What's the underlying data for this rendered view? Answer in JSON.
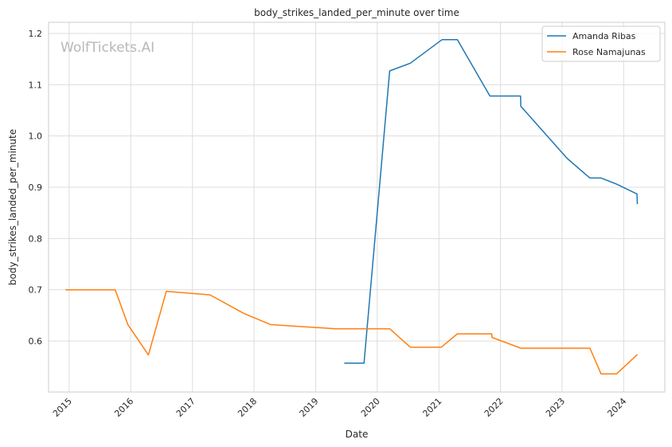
{
  "watermark": "WolfTickets.AI",
  "chart_data": {
    "type": "line",
    "title": "body_strikes_landed_per_minute over time",
    "xlabel": "Date",
    "ylabel": "body_strikes_landed_per_minute",
    "xlim": [
      "2014-09-01",
      "2024-09-01"
    ],
    "ylim": [
      0.5,
      1.2
    ],
    "x_ticks": [
      "2015",
      "2016",
      "2017",
      "2018",
      "2019",
      "2020",
      "2021",
      "2022",
      "2023",
      "2024"
    ],
    "y_ticks": [
      0.6,
      0.7,
      0.8,
      0.9,
      1.0,
      1.1,
      1.2
    ],
    "grid": true,
    "legend_position": "top-right",
    "series": [
      {
        "name": "Amanda Ribas",
        "color": "#1f77b4",
        "points": [
          [
            "2019-06-20",
            0.557
          ],
          [
            "2019-10-15",
            0.557
          ],
          [
            "2020-03-15",
            1.127
          ],
          [
            "2020-07-15",
            1.142
          ],
          [
            "2021-01-20",
            1.188
          ],
          [
            "2021-04-20",
            1.188
          ],
          [
            "2021-10-30",
            1.078
          ],
          [
            "2022-04-30",
            1.078
          ],
          [
            "2022-05-01",
            1.058
          ],
          [
            "2023-02-01",
            0.956
          ],
          [
            "2023-06-15",
            0.918
          ],
          [
            "2023-08-20",
            0.918
          ],
          [
            "2023-11-20",
            0.906
          ],
          [
            "2024-03-20",
            0.887
          ],
          [
            "2024-03-22",
            0.867
          ]
        ]
      },
      {
        "name": "Rose Namajunas",
        "color": "#ff7f0e",
        "points": [
          [
            "2014-12-10",
            0.7
          ],
          [
            "2015-10-01",
            0.7
          ],
          [
            "2015-12-15",
            0.632
          ],
          [
            "2016-04-15",
            0.573
          ],
          [
            "2016-07-30",
            0.697
          ],
          [
            "2017-04-15",
            0.69
          ],
          [
            "2017-11-01",
            0.654
          ],
          [
            "2018-04-10",
            0.632
          ],
          [
            "2019-05-01",
            0.624
          ],
          [
            "2020-03-15",
            0.624
          ],
          [
            "2020-07-15",
            0.588
          ],
          [
            "2021-01-15",
            0.588
          ],
          [
            "2021-04-20",
            0.614
          ],
          [
            "2021-11-10",
            0.614
          ],
          [
            "2021-11-12",
            0.607
          ],
          [
            "2022-05-01",
            0.586
          ],
          [
            "2023-06-15",
            0.586
          ],
          [
            "2023-08-20",
            0.536
          ],
          [
            "2023-11-20",
            0.536
          ],
          [
            "2024-03-10",
            0.57
          ],
          [
            "2024-03-22",
            0.574
          ]
        ]
      }
    ]
  }
}
